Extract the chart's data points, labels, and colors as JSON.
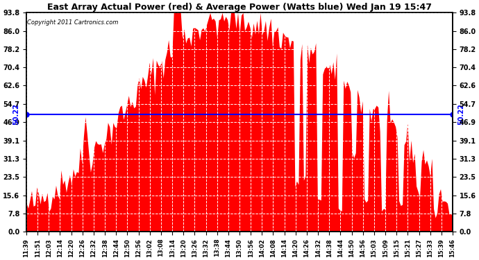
{
  "title": "East Array Actual Power (red) & Average Power (Watts blue) Wed Jan 19 15:47",
  "copyright": "Copyright 2011 Cartronics.com",
  "avg_power": 50.22,
  "ymin": 0.0,
  "ymax": 93.8,
  "yticks": [
    0.0,
    7.8,
    15.6,
    23.5,
    31.3,
    39.1,
    46.9,
    54.7,
    62.6,
    70.4,
    78.2,
    86.0,
    93.8
  ],
  "fill_color": "#FF0000",
  "line_color": "#0000FF",
  "bg_color": "#FFFFFF",
  "plot_bg_color": "#FFFFFF",
  "grid_color": "#AAAAAA",
  "xtick_labels": [
    "11:39",
    "11:51",
    "12:03",
    "12:14",
    "12:20",
    "12:26",
    "12:32",
    "12:38",
    "12:44",
    "12:50",
    "12:56",
    "13:02",
    "13:08",
    "13:14",
    "13:20",
    "13:26",
    "13:32",
    "13:38",
    "13:44",
    "13:50",
    "13:56",
    "14:02",
    "14:08",
    "14:14",
    "14:20",
    "14:26",
    "14:32",
    "14:38",
    "14:44",
    "14:50",
    "14:56",
    "15:03",
    "15:09",
    "15:15",
    "15:21",
    "15:27",
    "15:33",
    "15:39",
    "15:46"
  ]
}
